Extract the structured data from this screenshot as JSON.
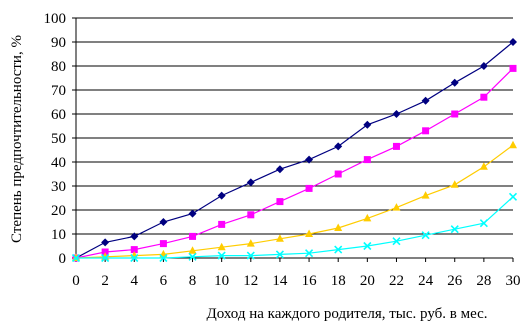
{
  "chart_data": {
    "type": "line",
    "xlabel": "Доход на каждого родителя, тыс. руб. в мес.",
    "ylabel": "Степень предпочтительности, %",
    "x": [
      0,
      2,
      4,
      6,
      8,
      10,
      12,
      14,
      16,
      18,
      20,
      22,
      24,
      26,
      28,
      30
    ],
    "xlim": [
      0,
      30
    ],
    "ylim": [
      0,
      100
    ],
    "yticks": [
      0,
      10,
      20,
      30,
      40,
      50,
      60,
      70,
      80,
      90,
      100
    ],
    "grid": "horizontal",
    "legend": "none",
    "series": [
      {
        "color": "#000080",
        "marker": "diamond",
        "values": [
          0,
          6.5,
          9,
          15,
          18.5,
          26,
          31.5,
          37,
          41,
          46.5,
          55.5,
          60,
          65.5,
          73,
          80,
          90
        ]
      },
      {
        "color": "#ff00ff",
        "marker": "square",
        "values": [
          0,
          2.5,
          3.5,
          6,
          9,
          14,
          18,
          23.5,
          29,
          35,
          41,
          46.5,
          53,
          60,
          67,
          79
        ]
      },
      {
        "color": "#ffcc00",
        "marker": "triangle",
        "values": [
          0,
          0.5,
          1,
          1.5,
          3,
          4.5,
          6,
          8,
          10,
          12.5,
          16.5,
          21,
          26,
          30.5,
          38,
          47
        ]
      },
      {
        "color": "#00ffff",
        "marker": "x",
        "values": [
          0,
          0,
          0,
          0,
          0.5,
          1,
          1,
          1.5,
          2,
          3.5,
          5,
          7,
          9.5,
          12,
          14.5,
          25.5
        ]
      }
    ]
  }
}
